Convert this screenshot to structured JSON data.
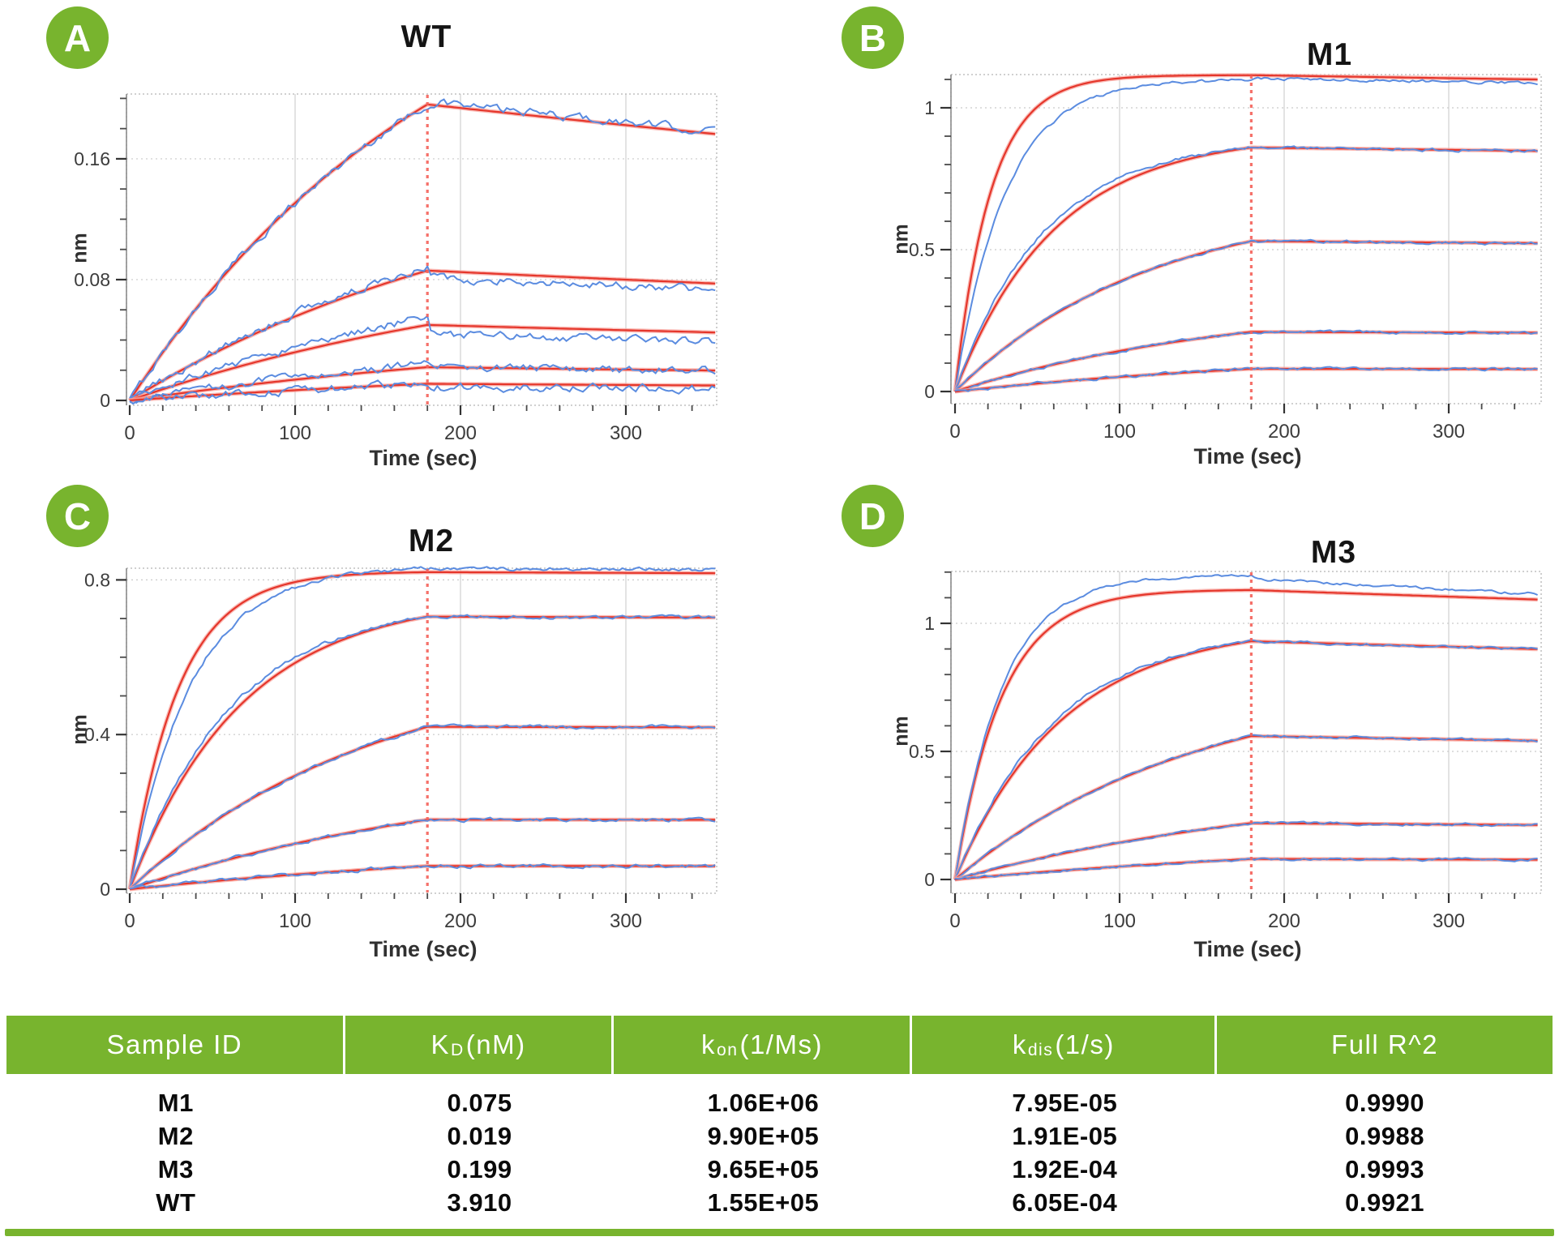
{
  "colors": {
    "accent_green": "#78b42e",
    "fit_red": "#e5362b",
    "fit_red_halo": "#f8a39c",
    "data_blue": "#5b8ce0",
    "dash_red": "#f4625a",
    "grid_gray": "#d7d7d7",
    "frame_gray": "#b3b3b3",
    "tick_dark": "#3c3c3c"
  },
  "panel_labels": [
    "A",
    "B",
    "C",
    "D"
  ],
  "chart_data": [
    {
      "type": "line",
      "title": "WT",
      "xlabel": "Time (sec)",
      "ylabel": "nm",
      "x_ticks": [
        "0",
        "100",
        "200",
        "300"
      ],
      "x_minor_step": 20,
      "x_max": 355,
      "y_ticks": [
        {
          "v": 0,
          "label": "0"
        },
        {
          "v": 0.08,
          "label": "0.08"
        },
        {
          "v": 0.16,
          "label": "0.16"
        }
      ],
      "y_minor_step": 0.02,
      "y_top": 0.203,
      "assoc_end_sec": 180,
      "kdis_per_sec": 0.000605,
      "noise_nm": 0.0023,
      "series": [
        {
          "r180_nm": 0.196,
          "kobs": 0.0052,
          "data_gain": 1.0,
          "data_dgain": 1.01,
          "data_kf": 1.0
        },
        {
          "r180_nm": 0.086,
          "kobs": 0.0042,
          "data_gain": 1.03,
          "data_dgain": 0.95,
          "data_kf": 1.0
        },
        {
          "r180_nm": 0.05,
          "kobs": 0.0038,
          "data_gain": 1.1,
          "data_dgain": 0.88,
          "data_kf": 1.0
        },
        {
          "r180_nm": 0.022,
          "kobs": 0.0032,
          "data_gain": 1.1,
          "data_dgain": 1.0,
          "data_kf": 1.0
        },
        {
          "r180_nm": 0.011,
          "kobs": 0.0028,
          "data_gain": 1.0,
          "data_dgain": 0.8,
          "data_kf": 1.0
        }
      ]
    },
    {
      "type": "line",
      "title": "M1",
      "xlabel": "Time (sec)",
      "ylabel": "nm",
      "x_ticks": [
        "0",
        "100",
        "200",
        "300"
      ],
      "x_minor_step": 20,
      "x_max": 355,
      "y_ticks": [
        {
          "v": 0,
          "label": "0"
        },
        {
          "v": 0.5,
          "label": "0.5"
        },
        {
          "v": 1,
          "label": "1"
        }
      ],
      "y_minor_step": 0.1,
      "y_top": 1.117,
      "assoc_end_sec": 180,
      "kdis_per_sec": 7.95e-05,
      "noise_nm": 0.0045,
      "series": [
        {
          "r180_nm": 1.115,
          "kobs": 0.046,
          "data_gain": 0.985,
          "data_dgain": 0.99,
          "data_kf": 0.72
        },
        {
          "r180_nm": 0.86,
          "kobs": 0.0165,
          "data_gain": 1.0,
          "data_dgain": 1.0,
          "data_kf": 1.12
        },
        {
          "r180_nm": 0.53,
          "kobs": 0.0085,
          "data_gain": 1.0,
          "data_dgain": 1.0,
          "data_kf": 1.0
        },
        {
          "r180_nm": 0.21,
          "kobs": 0.0058,
          "data_gain": 1.0,
          "data_dgain": 1.0,
          "data_kf": 1.0
        },
        {
          "r180_nm": 0.08,
          "kobs": 0.004,
          "data_gain": 1.0,
          "data_dgain": 1.0,
          "data_kf": 1.0
        }
      ]
    },
    {
      "type": "line",
      "title": "M2",
      "xlabel": "Time (sec)",
      "ylabel": "nm",
      "x_ticks": [
        "0",
        "100",
        "200",
        "300"
      ],
      "x_minor_step": 20,
      "x_max": 355,
      "y_ticks": [
        {
          "v": 0,
          "label": "0"
        },
        {
          "v": 0.4,
          "label": "0.4"
        },
        {
          "v": 0.8,
          "label": "0.8"
        }
      ],
      "y_minor_step": 0.1,
      "y_top": 0.83,
      "assoc_end_sec": 180,
      "kdis_per_sec": 1.91e-05,
      "noise_nm": 0.004,
      "series": [
        {
          "r180_nm": 0.82,
          "kobs": 0.034,
          "data_gain": 1.012,
          "data_dgain": 1.012,
          "data_kf": 0.8
        },
        {
          "r180_nm": 0.705,
          "kobs": 0.0148,
          "data_gain": 1.0,
          "data_dgain": 1.0,
          "data_kf": 1.1
        },
        {
          "r180_nm": 0.42,
          "kobs": 0.0068,
          "data_gain": 1.0,
          "data_dgain": 1.0,
          "data_kf": 1.0
        },
        {
          "r180_nm": 0.18,
          "kobs": 0.0046,
          "data_gain": 1.0,
          "data_dgain": 1.0,
          "data_kf": 1.0
        },
        {
          "r180_nm": 0.06,
          "kobs": 0.0035,
          "data_gain": 1.0,
          "data_dgain": 1.0,
          "data_kf": 1.0
        }
      ]
    },
    {
      "type": "line",
      "title": "M3",
      "xlabel": "Time (sec)",
      "ylabel": "nm",
      "x_ticks": [
        "0",
        "100",
        "200",
        "300"
      ],
      "x_minor_step": 20,
      "x_max": 355,
      "y_ticks": [
        {
          "v": 0,
          "label": "0"
        },
        {
          "v": 0.5,
          "label": "0.5"
        },
        {
          "v": 1,
          "label": "1"
        }
      ],
      "y_minor_step": 0.1,
      "y_top": 1.203,
      "assoc_end_sec": 180,
      "kdis_per_sec": 0.000192,
      "noise_nm": 0.0045,
      "series": [
        {
          "r180_nm": 1.13,
          "kobs": 0.035,
          "data_gain": 1.05,
          "data_dgain": 1.04,
          "data_kf": 1.0,
          "data_dkf": 1.6
        },
        {
          "r180_nm": 0.93,
          "kobs": 0.0152,
          "data_gain": 1.0,
          "data_dgain": 1.0,
          "data_kf": 1.08
        },
        {
          "r180_nm": 0.56,
          "kobs": 0.0068,
          "data_gain": 1.0,
          "data_dgain": 1.0,
          "data_kf": 1.0
        },
        {
          "r180_nm": 0.22,
          "kobs": 0.0046,
          "data_gain": 1.0,
          "data_dgain": 1.0,
          "data_kf": 1.0
        },
        {
          "r180_nm": 0.08,
          "kobs": 0.0035,
          "data_gain": 1.0,
          "data_dgain": 1.0,
          "data_kf": 1.0
        }
      ]
    }
  ],
  "table": {
    "headers": [
      {
        "label": "Sample ID"
      },
      {
        "pre": "K",
        "sub": "D",
        "post": "(nM)"
      },
      {
        "pre": "k",
        "sub": "on",
        "post": "(1/Ms)"
      },
      {
        "pre": "k",
        "sub": "dis",
        "post": "(1/s)"
      },
      {
        "label": "Full R^2"
      }
    ],
    "rows": [
      {
        "sample_id": "M1",
        "kd_nm": "0.075",
        "kon": "1.06E+06",
        "kdis": "7.95E-05",
        "full_r2": "0.9990"
      },
      {
        "sample_id": "M2",
        "kd_nm": "0.019",
        "kon": "9.90E+05",
        "kdis": "1.91E-05",
        "full_r2": "0.9988"
      },
      {
        "sample_id": "M3",
        "kd_nm": "0.199",
        "kon": "9.65E+05",
        "kdis": "1.92E-04",
        "full_r2": "0.9993"
      },
      {
        "sample_id": "WT",
        "kd_nm": "3.910",
        "kon": "1.55E+05",
        "kdis": "6.05E-04",
        "full_r2": "0.9921"
      }
    ]
  }
}
